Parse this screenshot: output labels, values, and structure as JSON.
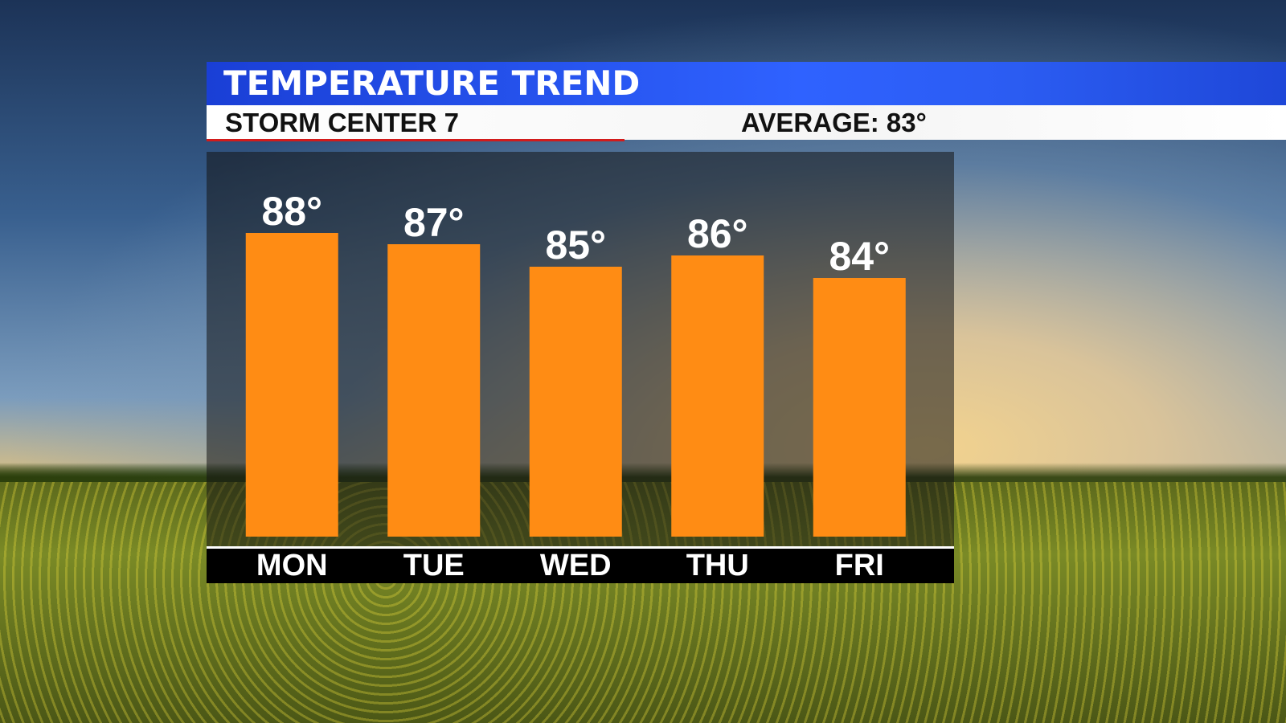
{
  "chart_data": {
    "type": "bar",
    "title": "TEMPERATURE TREND",
    "subtitle": "STORM CENTER 7",
    "average_label": "AVERAGE: 83°",
    "categories": [
      "MON",
      "TUE",
      "WED",
      "THU",
      "FRI"
    ],
    "values": [
      88,
      87,
      85,
      86,
      84
    ],
    "value_labels": [
      "88°",
      "87°",
      "85°",
      "86°",
      "84°"
    ],
    "color": "#ff8c14",
    "ylim": [
      61,
      90
    ]
  }
}
